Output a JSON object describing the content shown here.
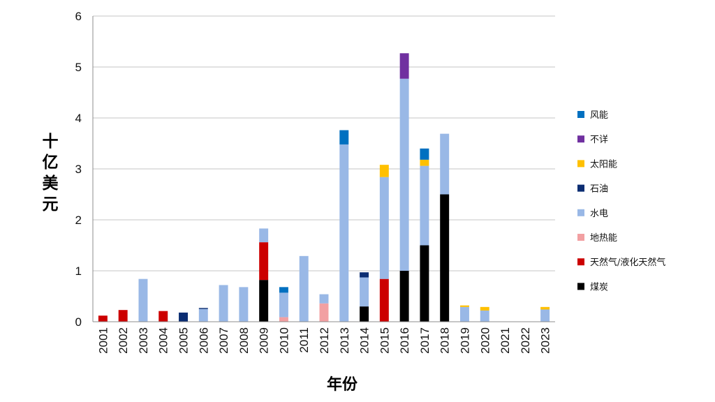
{
  "chart_data": {
    "type": "bar",
    "stacked": true,
    "title": "",
    "xlabel": "年份",
    "ylabel": "十亿美元",
    "ylim": [
      0,
      6
    ],
    "yticks": [
      0,
      1,
      2,
      3,
      4,
      5,
      6
    ],
    "grid": true,
    "legend_position": "right",
    "categories": [
      "2001",
      "2002",
      "2003",
      "2004",
      "2005",
      "2006",
      "2007",
      "2008",
      "2009",
      "2010",
      "2011",
      "2012",
      "2013",
      "2014",
      "2015",
      "2016",
      "2017",
      "2018",
      "2019",
      "2020",
      "2021",
      "2022",
      "2023"
    ],
    "series": [
      {
        "name": "煤炭",
        "color": "#000000",
        "values": [
          0,
          0,
          0,
          0,
          0,
          0,
          0,
          0,
          0.82,
          0,
          0,
          0,
          0,
          0.3,
          0,
          1.0,
          1.5,
          2.5,
          0,
          0,
          0,
          0,
          0
        ]
      },
      {
        "name": "天然气/液化天然气",
        "color": "#cc0000",
        "values": [
          0.12,
          0.23,
          0,
          0.21,
          0,
          0,
          0,
          0,
          0.74,
          0,
          0,
          0,
          0,
          0,
          0.84,
          0,
          0,
          0,
          0,
          0,
          0,
          0,
          0
        ]
      },
      {
        "name": "地热能",
        "color": "#f2a0a2",
        "values": [
          0,
          0,
          0,
          0,
          0,
          0,
          0,
          0,
          0,
          0.09,
          0,
          0.36,
          0,
          0,
          0,
          0,
          0,
          0,
          0,
          0,
          0,
          0,
          0
        ]
      },
      {
        "name": "水电",
        "color": "#99b8e6",
        "values": [
          0,
          0,
          0.84,
          0,
          0,
          0.25,
          0.72,
          0.68,
          0.27,
          0.48,
          1.29,
          0.18,
          3.48,
          0.57,
          2.0,
          3.77,
          1.56,
          1.19,
          0.29,
          0.22,
          0,
          0,
          0.24
        ]
      },
      {
        "name": "石油",
        "color": "#0b2d72",
        "values": [
          0,
          0,
          0,
          0,
          0.18,
          0.02,
          0,
          0,
          0,
          0,
          0,
          0,
          0,
          0.1,
          0,
          0,
          0,
          0,
          0,
          0,
          0,
          0,
          0
        ]
      },
      {
        "name": "太阳能",
        "color": "#ffc000",
        "values": [
          0,
          0,
          0,
          0,
          0,
          0,
          0,
          0,
          0,
          0,
          0,
          0,
          0,
          0,
          0.24,
          0,
          0.12,
          0,
          0.03,
          0.07,
          0,
          0,
          0.05
        ]
      },
      {
        "name": "不详",
        "color": "#7030a0",
        "values": [
          0,
          0,
          0,
          0,
          0,
          0,
          0,
          0,
          0,
          0,
          0,
          0,
          0,
          0,
          0,
          0.5,
          0,
          0,
          0,
          0,
          0,
          0,
          0
        ]
      },
      {
        "name": "风能",
        "color": "#0070c0",
        "values": [
          0,
          0,
          0,
          0,
          0,
          0,
          0,
          0,
          0,
          0.11,
          0,
          0,
          0.28,
          0,
          0,
          0,
          0.22,
          0,
          0,
          0,
          0,
          0,
          0
        ]
      }
    ],
    "legend_order": [
      "风能",
      "不详",
      "太阳能",
      "石油",
      "水电",
      "地热能",
      "天然气/液化天然气",
      "煤炭"
    ]
  }
}
